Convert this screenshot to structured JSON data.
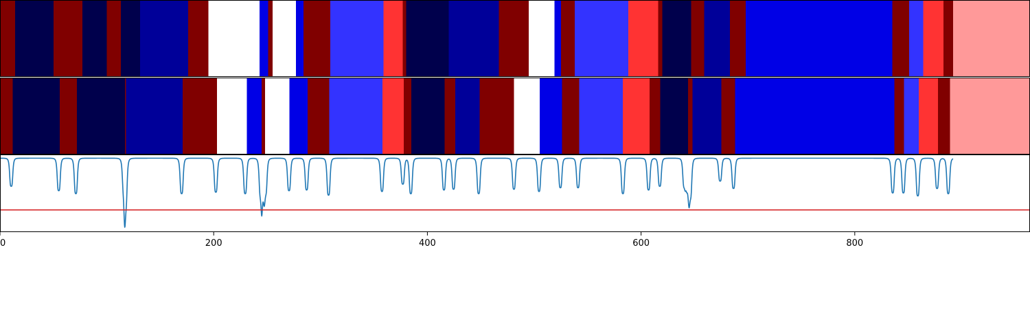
{
  "chart_data": {
    "type": "heatmap",
    "title": "",
    "xlabel": "",
    "ylabel": "",
    "xlim": [
      0,
      964
    ],
    "x_ticks": [
      0,
      200,
      400,
      600,
      800
    ],
    "x_tick_labels": [
      "0",
      "200",
      "400",
      "600",
      "800"
    ],
    "grid": false,
    "palette": {
      "dark-red": "#800000",
      "navy": "#00004c",
      "dark-blue": "#000099",
      "blue": "#0000e6",
      "light-blue": "#3333ff",
      "red": "#ff3333",
      "pink": "#ff9999",
      "white": "#ffffff"
    },
    "bands": [
      {
        "segments": [
          {
            "start": 0,
            "end": 14,
            "color": "dark-red"
          },
          {
            "start": 14,
            "end": 50,
            "color": "navy"
          },
          {
            "start": 50,
            "end": 77,
            "color": "dark-red"
          },
          {
            "start": 77,
            "end": 100,
            "color": "navy"
          },
          {
            "start": 100,
            "end": 113,
            "color": "dark-red"
          },
          {
            "start": 113,
            "end": 131,
            "color": "navy"
          },
          {
            "start": 131,
            "end": 176,
            "color": "dark-blue"
          },
          {
            "start": 176,
            "end": 195,
            "color": "dark-red"
          },
          {
            "start": 195,
            "end": 243,
            "color": "white"
          },
          {
            "start": 243,
            "end": 251,
            "color": "blue"
          },
          {
            "start": 251,
            "end": 255,
            "color": "dark-red"
          },
          {
            "start": 255,
            "end": 277,
            "color": "white"
          },
          {
            "start": 277,
            "end": 284,
            "color": "blue"
          },
          {
            "start": 284,
            "end": 309,
            "color": "dark-red"
          },
          {
            "start": 309,
            "end": 359,
            "color": "light-blue"
          },
          {
            "start": 359,
            "end": 377,
            "color": "red"
          },
          {
            "start": 377,
            "end": 380,
            "color": "dark-red"
          },
          {
            "start": 380,
            "end": 420,
            "color": "navy"
          },
          {
            "start": 420,
            "end": 467,
            "color": "dark-blue"
          },
          {
            "start": 467,
            "end": 495,
            "color": "dark-red"
          },
          {
            "start": 495,
            "end": 519,
            "color": "white"
          },
          {
            "start": 519,
            "end": 525,
            "color": "blue"
          },
          {
            "start": 525,
            "end": 538,
            "color": "dark-red"
          },
          {
            "start": 538,
            "end": 588,
            "color": "light-blue"
          },
          {
            "start": 588,
            "end": 616,
            "color": "red"
          },
          {
            "start": 616,
            "end": 620,
            "color": "dark-red"
          },
          {
            "start": 620,
            "end": 647,
            "color": "navy"
          },
          {
            "start": 647,
            "end": 659,
            "color": "dark-red"
          },
          {
            "start": 659,
            "end": 683,
            "color": "dark-blue"
          },
          {
            "start": 683,
            "end": 698,
            "color": "dark-red"
          },
          {
            "start": 698,
            "end": 835,
            "color": "blue"
          },
          {
            "start": 835,
            "end": 851,
            "color": "dark-red"
          },
          {
            "start": 851,
            "end": 864,
            "color": "light-blue"
          },
          {
            "start": 864,
            "end": 883,
            "color": "red"
          },
          {
            "start": 883,
            "end": 892,
            "color": "dark-red"
          },
          {
            "start": 892,
            "end": 964,
            "color": "pink"
          }
        ]
      },
      {
        "segments": [
          {
            "start": 0,
            "end": 12,
            "color": "dark-red"
          },
          {
            "start": 12,
            "end": 56,
            "color": "navy"
          },
          {
            "start": 56,
            "end": 72,
            "color": "dark-red"
          },
          {
            "start": 72,
            "end": 117,
            "color": "navy"
          },
          {
            "start": 117,
            "end": 118,
            "color": "dark-red"
          },
          {
            "start": 118,
            "end": 171,
            "color": "dark-blue"
          },
          {
            "start": 171,
            "end": 203,
            "color": "dark-red"
          },
          {
            "start": 203,
            "end": 231,
            "color": "white"
          },
          {
            "start": 231,
            "end": 245,
            "color": "blue"
          },
          {
            "start": 245,
            "end": 248,
            "color": "dark-red"
          },
          {
            "start": 248,
            "end": 271,
            "color": "white"
          },
          {
            "start": 271,
            "end": 288,
            "color": "blue"
          },
          {
            "start": 288,
            "end": 308,
            "color": "dark-red"
          },
          {
            "start": 308,
            "end": 358,
            "color": "light-blue"
          },
          {
            "start": 358,
            "end": 378,
            "color": "red"
          },
          {
            "start": 378,
            "end": 385,
            "color": "dark-red"
          },
          {
            "start": 385,
            "end": 416,
            "color": "navy"
          },
          {
            "start": 416,
            "end": 426,
            "color": "dark-red"
          },
          {
            "start": 426,
            "end": 449,
            "color": "dark-blue"
          },
          {
            "start": 449,
            "end": 481,
            "color": "dark-red"
          },
          {
            "start": 481,
            "end": 505,
            "color": "white"
          },
          {
            "start": 505,
            "end": 526,
            "color": "blue"
          },
          {
            "start": 526,
            "end": 542,
            "color": "dark-red"
          },
          {
            "start": 542,
            "end": 583,
            "color": "light-blue"
          },
          {
            "start": 583,
            "end": 608,
            "color": "red"
          },
          {
            "start": 608,
            "end": 618,
            "color": "dark-red"
          },
          {
            "start": 618,
            "end": 644,
            "color": "navy"
          },
          {
            "start": 644,
            "end": 648,
            "color": "dark-red"
          },
          {
            "start": 648,
            "end": 675,
            "color": "dark-blue"
          },
          {
            "start": 675,
            "end": 688,
            "color": "dark-red"
          },
          {
            "start": 688,
            "end": 837,
            "color": "blue"
          },
          {
            "start": 837,
            "end": 846,
            "color": "dark-red"
          },
          {
            "start": 846,
            "end": 860,
            "color": "light-blue"
          },
          {
            "start": 860,
            "end": 878,
            "color": "red"
          },
          {
            "start": 878,
            "end": 889,
            "color": "dark-red"
          },
          {
            "start": 889,
            "end": 964,
            "color": "pink"
          }
        ]
      }
    ],
    "signal_panel": {
      "ylim": [
        -1.0,
        0.05
      ],
      "baseline": 0,
      "threshold": -0.7,
      "line_color": "#1f77b4",
      "threshold_color": "#d62728",
      "dips": [
        {
          "x": 10.5,
          "depth": 0.38
        },
        {
          "x": 55,
          "depth": 0.44
        },
        {
          "x": 71,
          "depth": 0.48
        },
        {
          "x": 116,
          "depth": 0.38
        },
        {
          "x": 117.5,
          "depth": 0.6
        },
        {
          "x": 170,
          "depth": 0.48
        },
        {
          "x": 202,
          "depth": 0.46
        },
        {
          "x": 229.5,
          "depth": 0.48
        },
        {
          "x": 244,
          "depth": 0.48
        },
        {
          "x": 246,
          "depth": 0.4
        },
        {
          "x": 248.5,
          "depth": 0.46
        },
        {
          "x": 270.5,
          "depth": 0.44
        },
        {
          "x": 287,
          "depth": 0.43
        },
        {
          "x": 307.5,
          "depth": 0.5
        },
        {
          "x": 357.5,
          "depth": 0.45
        },
        {
          "x": 377,
          "depth": 0.35
        },
        {
          "x": 384.5,
          "depth": 0.48
        },
        {
          "x": 415.5,
          "depth": 0.43
        },
        {
          "x": 424.5,
          "depth": 0.42
        },
        {
          "x": 448,
          "depth": 0.48
        },
        {
          "x": 481,
          "depth": 0.42
        },
        {
          "x": 504.5,
          "depth": 0.45
        },
        {
          "x": 524.5,
          "depth": 0.4
        },
        {
          "x": 541,
          "depth": 0.4
        },
        {
          "x": 583,
          "depth": 0.48
        },
        {
          "x": 607,
          "depth": 0.43
        },
        {
          "x": 617.5,
          "depth": 0.38
        },
        {
          "x": 640.5,
          "depth": 0.38
        },
        {
          "x": 643.5,
          "depth": 0.38
        },
        {
          "x": 646,
          "depth": 0.52
        },
        {
          "x": 674,
          "depth": 0.31
        },
        {
          "x": 686.5,
          "depth": 0.41
        },
        {
          "x": 835.5,
          "depth": 0.47
        },
        {
          "x": 845.5,
          "depth": 0.47
        },
        {
          "x": 859,
          "depth": 0.51
        },
        {
          "x": 877,
          "depth": 0.41
        },
        {
          "x": 887.5,
          "depth": 0.48
        }
      ]
    }
  }
}
